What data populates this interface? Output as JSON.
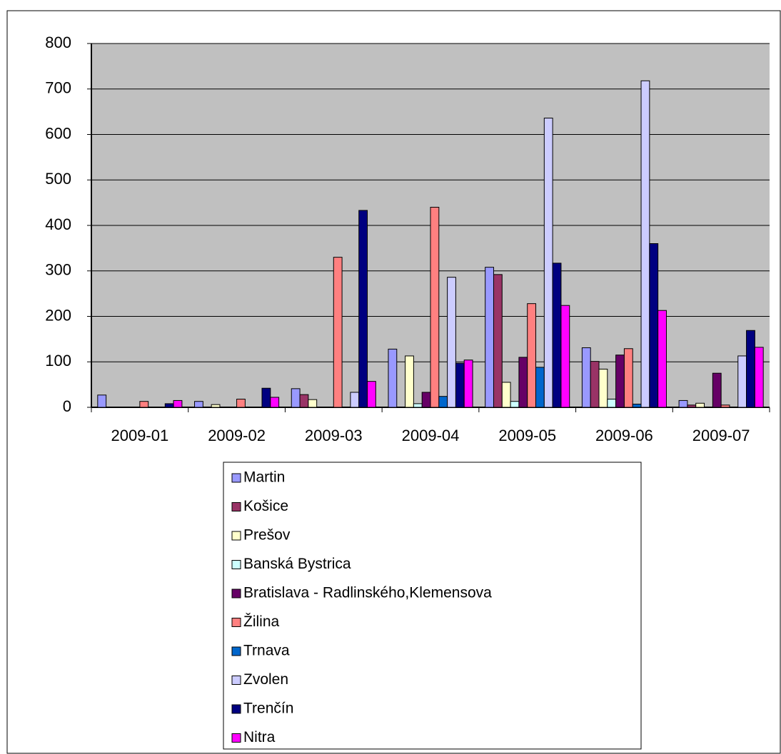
{
  "chart_data": {
    "type": "bar",
    "categories": [
      "2009-01",
      "2009-02",
      "2009-03",
      "2009-04",
      "2009-05",
      "2009-06",
      "2009-07"
    ],
    "series": [
      {
        "name": "Martin",
        "color": "#9999ff",
        "values": [
          27,
          13,
          41,
          128,
          308,
          131,
          15
        ]
      },
      {
        "name": "Košice",
        "color": "#993366",
        "values": [
          0,
          0,
          28,
          0,
          292,
          101,
          5
        ]
      },
      {
        "name": "Prešov",
        "color": "#ffffcc",
        "values": [
          0,
          6,
          17,
          113,
          55,
          84,
          9
        ]
      },
      {
        "name": "Banská Bystrica",
        "color": "#ccffff",
        "values": [
          0,
          0,
          0,
          8,
          13,
          18,
          0
        ]
      },
      {
        "name": "Bratislava - Radlinského,Klemensova",
        "color": "#660066",
        "values": [
          0,
          0,
          0,
          33,
          110,
          115,
          75
        ]
      },
      {
        "name": "Žilina",
        "color": "#ff8080",
        "values": [
          13,
          18,
          330,
          440,
          228,
          129,
          5
        ]
      },
      {
        "name": "Trnava",
        "color": "#0066cc",
        "values": [
          0,
          0,
          0,
          24,
          88,
          7,
          0
        ]
      },
      {
        "name": "Zvolen",
        "color": "#ccccff",
        "values": [
          0,
          0,
          33,
          286,
          636,
          718,
          113
        ]
      },
      {
        "name": "Trenčín",
        "color": "#000080",
        "values": [
          8,
          42,
          433,
          97,
          317,
          360,
          169
        ]
      },
      {
        "name": "Nitra",
        "color": "#ff00ff",
        "values": [
          15,
          22,
          57,
          104,
          224,
          213,
          132
        ]
      }
    ],
    "ylim": [
      0,
      800
    ],
    "yticks": [
      0,
      100,
      200,
      300,
      400,
      500,
      600,
      700,
      800
    ],
    "grid": true,
    "plot_background": "#c0c0c0",
    "legend": "bottom"
  }
}
